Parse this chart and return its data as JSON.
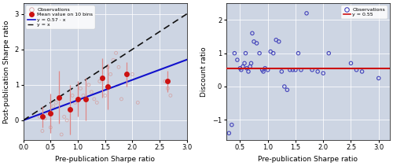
{
  "left_panel": {
    "scatter_x": [
      0.3,
      0.35,
      0.4,
      0.45,
      0.5,
      0.55,
      0.6,
      0.65,
      0.7,
      0.75,
      0.8,
      0.85,
      0.9,
      0.95,
      1.0,
      1.05,
      1.1,
      1.15,
      1.2,
      1.25,
      1.3,
      1.35,
      1.4,
      1.45,
      1.5,
      1.55,
      1.6,
      1.65,
      1.7,
      1.75,
      1.8,
      2.0,
      2.1,
      2.6,
      2.65,
      2.7
    ],
    "scatter_y": [
      0.1,
      -0.3,
      0.05,
      0.2,
      -0.2,
      0.4,
      0.5,
      0.6,
      -0.4,
      0.1,
      0.0,
      0.3,
      0.7,
      0.5,
      0.55,
      0.9,
      0.7,
      0.6,
      1.0,
      0.8,
      0.6,
      0.5,
      1.1,
      1.2,
      0.7,
      1.5,
      1.3,
      1.7,
      1.9,
      1.5,
      0.6,
      1.3,
      0.5,
      1.1,
      0.9,
      0.7
    ],
    "bin_x": [
      0.35,
      0.5,
      0.65,
      0.85,
      1.0,
      1.15,
      1.45,
      1.55,
      1.9,
      2.65
    ],
    "bin_y": [
      0.1,
      0.2,
      0.65,
      0.3,
      0.6,
      0.6,
      1.2,
      0.95,
      1.3,
      1.1
    ],
    "bin_yerr": [
      0.3,
      0.55,
      0.75,
      0.7,
      0.5,
      0.6,
      0.55,
      0.65,
      0.35,
      0.3
    ],
    "reg_slope": 0.57,
    "xlabel": "Pre-publication Sharpe ratio",
    "ylabel": "Post-publication Sharpe ratio",
    "xlim": [
      0,
      3
    ],
    "ylim": [
      -0.55,
      3.3
    ],
    "yticks": [
      0,
      1,
      2,
      3
    ],
    "xticks": [
      0,
      0.5,
      1.0,
      1.5,
      2.0,
      2.5,
      3.0
    ],
    "legend_labels": [
      "Observations",
      "Mean value on 10 bins",
      "y = 0.57 · x",
      "y = x"
    ],
    "bg_color": "#cdd5e3",
    "scatter_color": "#d4a0a0",
    "bin_color": "#cc1111",
    "reg_color": "#1111cc",
    "diag_color": "#111111"
  },
  "right_panel": {
    "scatter_x": [
      0.3,
      0.35,
      0.4,
      0.45,
      0.5,
      0.52,
      0.55,
      0.58,
      0.6,
      0.62,
      0.65,
      0.68,
      0.7,
      0.72,
      0.75,
      0.8,
      0.85,
      0.9,
      0.92,
      0.95,
      1.0,
      1.05,
      1.1,
      1.15,
      1.2,
      1.25,
      1.3,
      1.35,
      1.4,
      1.45,
      1.5,
      1.55,
      1.6,
      1.7,
      1.8,
      1.9,
      2.0,
      2.1,
      2.5,
      2.6,
      2.7,
      3.0
    ],
    "scatter_y": [
      -1.4,
      -1.15,
      1.0,
      0.8,
      0.55,
      0.5,
      0.6,
      0.7,
      1.0,
      0.55,
      0.45,
      0.6,
      0.7,
      1.6,
      1.35,
      1.3,
      1.0,
      0.5,
      0.45,
      0.55,
      0.5,
      1.05,
      1.0,
      1.4,
      1.35,
      0.45,
      0.0,
      -0.1,
      0.5,
      0.5,
      0.5,
      1.0,
      0.5,
      2.2,
      0.5,
      0.45,
      0.4,
      1.0,
      0.7,
      0.5,
      0.45,
      0.25
    ],
    "median_y": 0.55,
    "xlabel": "Pre-publication Sharpe ratio",
    "ylabel": "Discount ratio",
    "xlim": [
      0.25,
      3.2
    ],
    "ylim": [
      -1.6,
      2.5
    ],
    "yticks": [
      -1,
      0,
      1,
      2
    ],
    "xticks": [
      0.5,
      1.0,
      1.5,
      2.0,
      2.5,
      3.0
    ],
    "bg_color": "#cdd5e3",
    "scatter_color": "#4444bb",
    "line_color": "#cc1111",
    "legend_labels": [
      "Observations",
      "y = 0.55"
    ]
  },
  "fig_bg_color": "#ffffff"
}
